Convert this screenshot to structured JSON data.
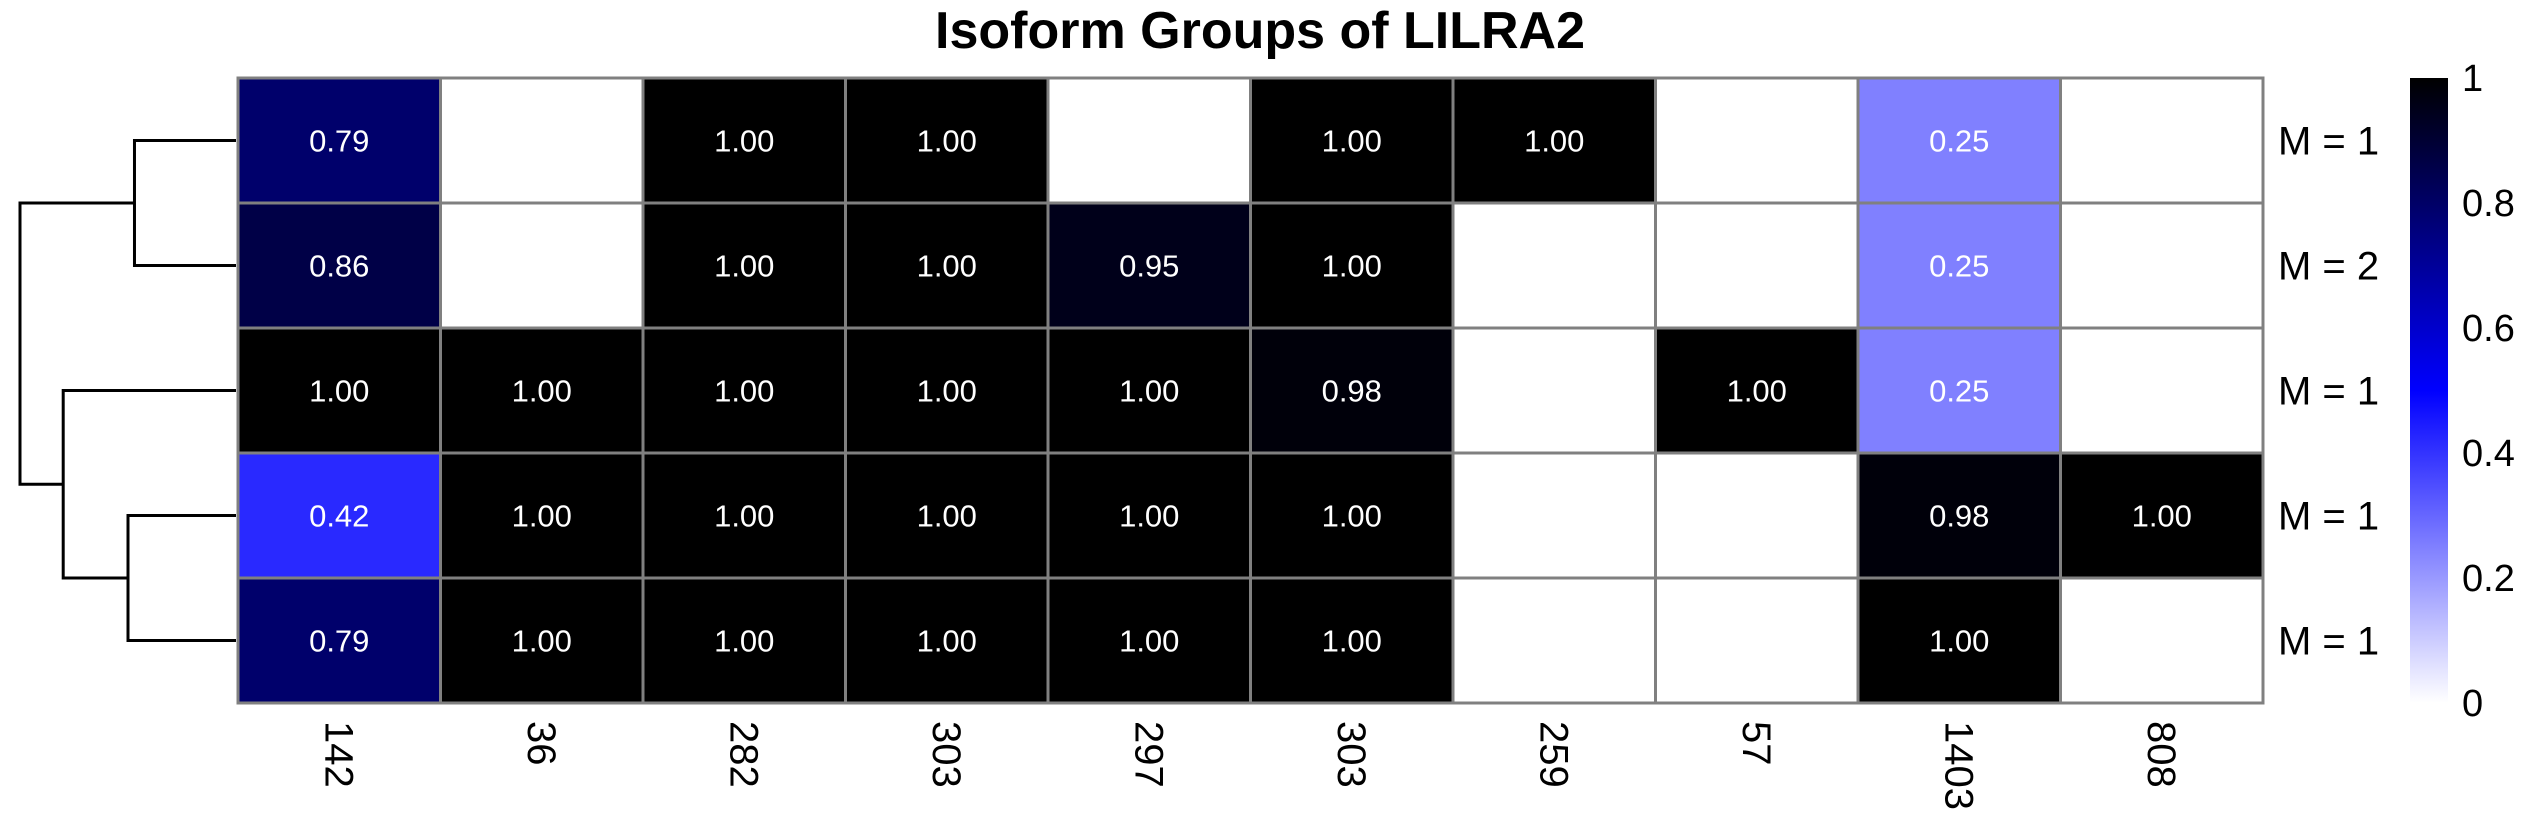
{
  "chart_data": {
    "type": "heatmap",
    "title": "Isoform Groups of LILRA2",
    "columns": [
      "142",
      "36",
      "282",
      "303",
      "297",
      "303",
      "259",
      "57",
      "1403",
      "808"
    ],
    "rows": [
      "M = 1",
      "M = 2",
      "M = 1",
      "M = 1",
      "M = 1"
    ],
    "values": [
      [
        0.79,
        null,
        1.0,
        1.0,
        null,
        1.0,
        1.0,
        null,
        0.25,
        null
      ],
      [
        0.86,
        null,
        1.0,
        1.0,
        0.95,
        1.0,
        null,
        null,
        0.25,
        null
      ],
      [
        1.0,
        1.0,
        1.0,
        1.0,
        1.0,
        0.98,
        null,
        1.0,
        0.25,
        null
      ],
      [
        0.42,
        1.0,
        1.0,
        1.0,
        1.0,
        1.0,
        null,
        null,
        0.98,
        1.0
      ],
      [
        0.79,
        1.0,
        1.0,
        1.0,
        1.0,
        1.0,
        null,
        null,
        1.0,
        null
      ]
    ],
    "value_labels": [
      [
        "0.79",
        "",
        "1.00",
        "1.00",
        "",
        "1.00",
        "1.00",
        "",
        "0.25",
        ""
      ],
      [
        "0.86",
        "",
        "1.00",
        "1.00",
        "0.95",
        "1.00",
        "",
        "",
        "0.25",
        ""
      ],
      [
        "1.00",
        "1.00",
        "1.00",
        "1.00",
        "1.00",
        "0.98",
        "",
        "1.00",
        "0.25",
        ""
      ],
      [
        "0.42",
        "1.00",
        "1.00",
        "1.00",
        "1.00",
        "1.00",
        "",
        "",
        "0.98",
        "1.00"
      ],
      [
        "0.79",
        "1.00",
        "1.00",
        "1.00",
        "1.00",
        "1.00",
        "",
        "",
        "1.00",
        ""
      ]
    ],
    "color_scale": {
      "min": 0,
      "max": 1,
      "stops": [
        {
          "value": 0,
          "color": "#ffffff"
        },
        {
          "value": 0.5,
          "color": "#0000ff"
        },
        {
          "value": 1,
          "color": "#000000"
        }
      ],
      "ticks": [
        "0",
        "0.2",
        "0.4",
        "0.6",
        "0.8",
        "1"
      ]
    },
    "row_dendrogram": {
      "merges": [
        {
          "id": "A",
          "left": "r0",
          "right": "r1",
          "height": 0.47
        },
        {
          "id": "B",
          "left": "r3",
          "right": "r4",
          "height": 0.5
        },
        {
          "id": "C",
          "left": "r2",
          "right": "B",
          "height": 0.8
        },
        {
          "id": "D",
          "left": "A",
          "right": "C",
          "height": 1.0
        }
      ]
    },
    "grid_color": "#808080"
  }
}
